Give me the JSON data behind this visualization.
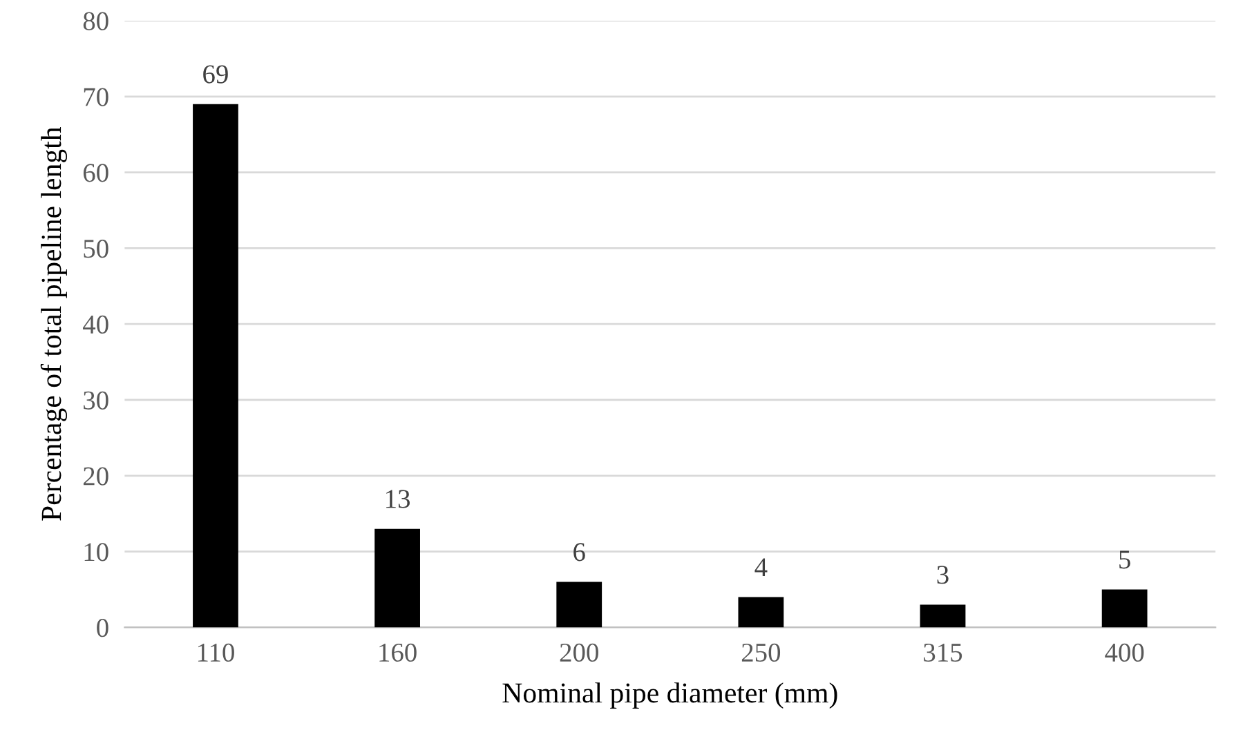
{
  "chart_data": {
    "type": "bar",
    "xlabel": "Nominal pipe diameter (mm)",
    "ylabel": "Percentage of total pipeline length",
    "categories": [
      "110",
      "160",
      "200",
      "250",
      "315",
      "400"
    ],
    "values": [
      69,
      13,
      6,
      4,
      3,
      5
    ],
    "color": "#000000",
    "ylim": [
      0,
      80
    ],
    "yticks": [
      0,
      10,
      20,
      30,
      40,
      50,
      60,
      70,
      80
    ],
    "grid": "y",
    "data_labels": true
  }
}
